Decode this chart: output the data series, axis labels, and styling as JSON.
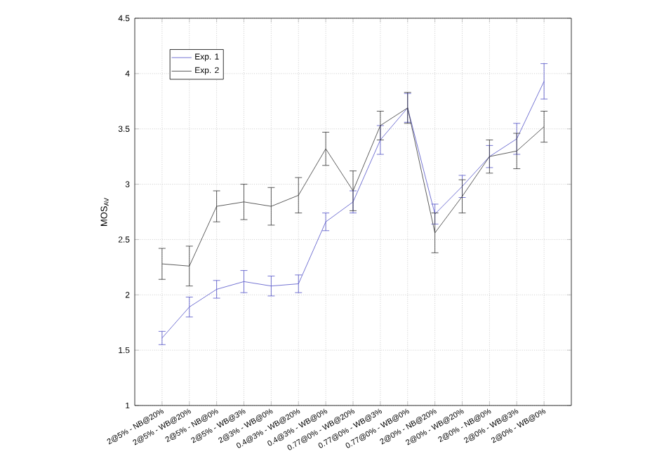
{
  "chart_data": {
    "type": "line",
    "ylabel": "MOS$_{AV}$",
    "categories": [
      "2@5% - NB@20%",
      "2@5% - WB@20%",
      "2@5% - NB@0%",
      "2@5% - WB@3%",
      "2@3% - WB@0%",
      "0.4@3% - WB@20%",
      "0.4@3% - WB@0%",
      "0.77@0% - WB@20%",
      "0.77@0% - WB@3%",
      "0.77@0% - WB@0%",
      "2@0% - NB@20%",
      "2@0% - WB@20%",
      "2@0% - NB@0%",
      "2@0% - WB@3%",
      "2@0% - WB@0%"
    ],
    "series": [
      {
        "name": "Exp. 1",
        "color": "#5050c8",
        "values": [
          1.61,
          1.89,
          2.05,
          2.12,
          2.08,
          2.1,
          2.66,
          2.84,
          3.4,
          3.69,
          2.73,
          2.98,
          3.25,
          3.41,
          3.93
        ],
        "errors": [
          0.06,
          0.09,
          0.08,
          0.1,
          0.09,
          0.08,
          0.08,
          0.1,
          0.13,
          0.13,
          0.09,
          0.1,
          0.1,
          0.14,
          0.16
        ]
      },
      {
        "name": "Exp. 2",
        "color": "#333333",
        "values": [
          2.28,
          2.26,
          2.8,
          2.84,
          2.8,
          2.9,
          3.32,
          2.94,
          3.53,
          3.69,
          2.56,
          2.89,
          3.25,
          3.3,
          3.52
        ],
        "errors": [
          0.14,
          0.18,
          0.14,
          0.16,
          0.17,
          0.16,
          0.15,
          0.18,
          0.13,
          0.14,
          0.18,
          0.15,
          0.15,
          0.16,
          0.14
        ]
      }
    ],
    "ylim": [
      1,
      4.5
    ],
    "yticks": [
      1,
      1.5,
      2,
      2.5,
      3,
      3.5,
      4,
      4.5
    ],
    "grid": true,
    "legend": "top left",
    "marker": "none"
  }
}
